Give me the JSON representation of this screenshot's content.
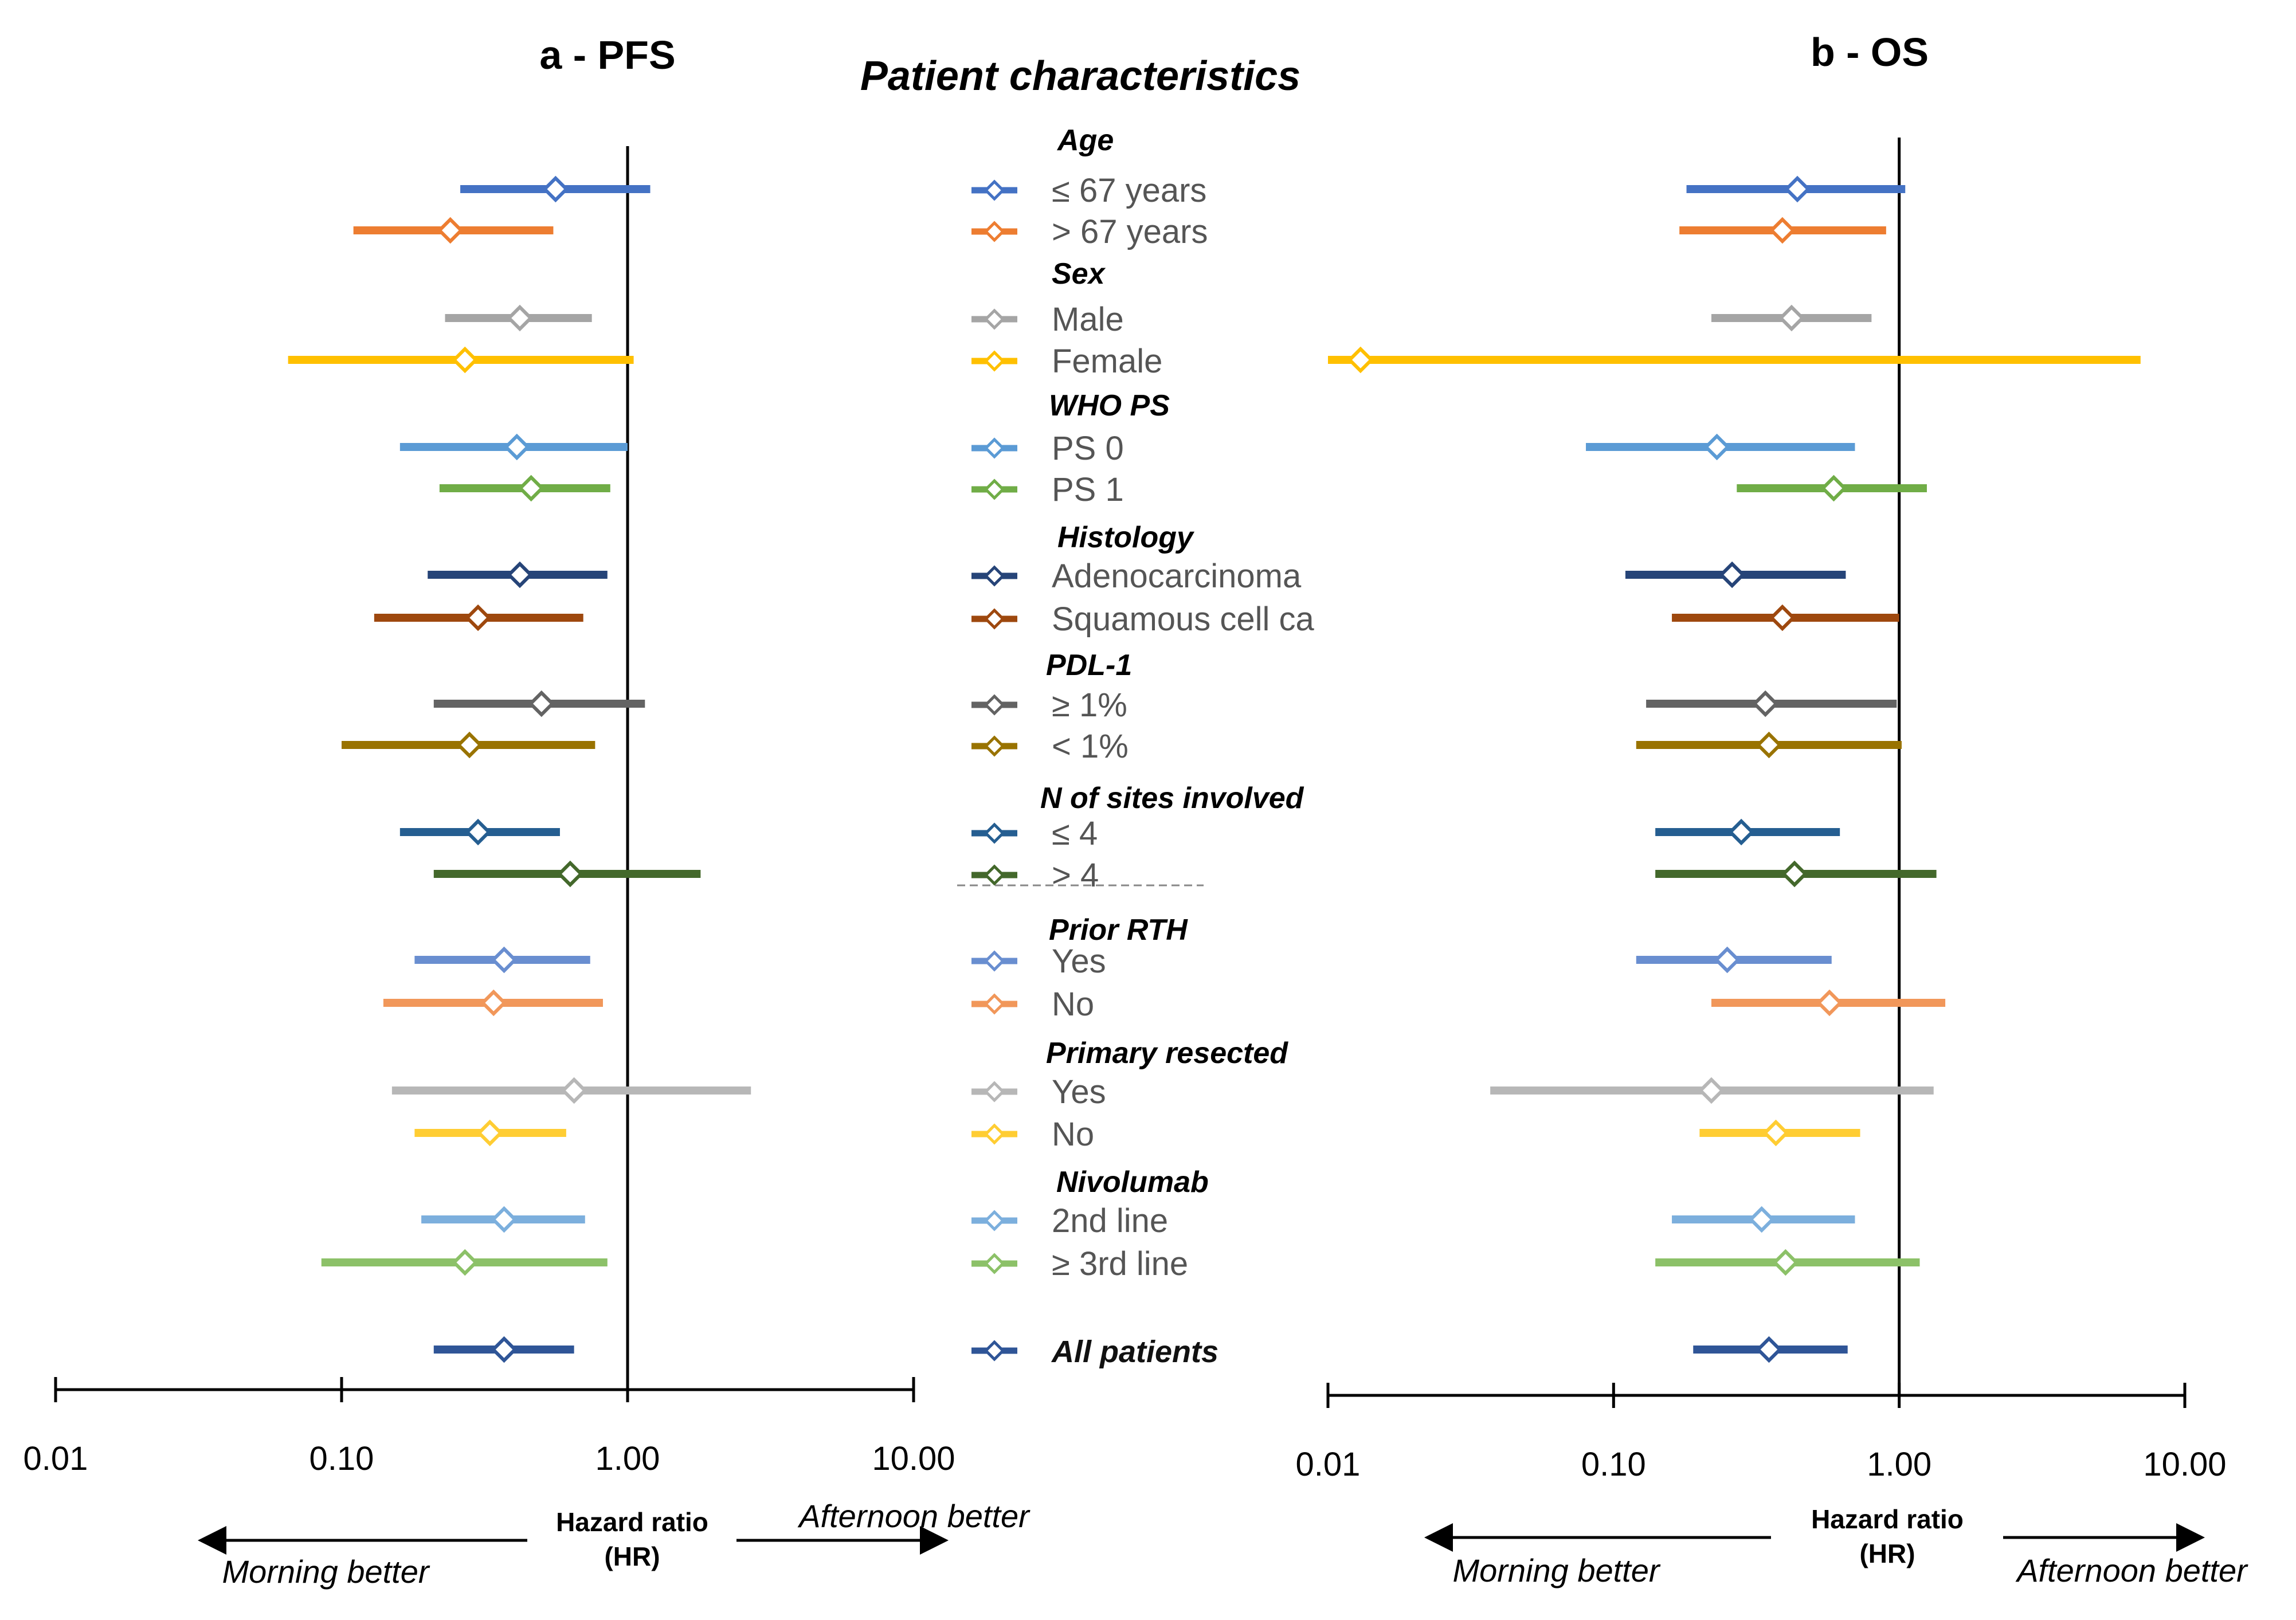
{
  "center_title": "Patient characteristics",
  "axis_label": [
    "Hazard ratio",
    "(HR)"
  ],
  "direction_left": "Morning better",
  "direction_right": "Afternoon  better",
  "direction_right_b": "Afternoon better",
  "tick_labels": [
    "0.01",
    "0.10",
    "1.00",
    "10.00"
  ],
  "groups": [
    {
      "key": "age",
      "label": "Age"
    },
    {
      "key": "sex",
      "label": "Sex"
    },
    {
      "key": "who",
      "label": "WHO PS"
    },
    {
      "key": "hist",
      "label": "Histology"
    },
    {
      "key": "pdl",
      "label": "PDL-1"
    },
    {
      "key": "nsites",
      "label": "N of sites involved"
    },
    {
      "key": "rth",
      "label": "Prior RTH"
    },
    {
      "key": "resected",
      "label": "Primary resected"
    },
    {
      "key": "nivo",
      "label": "Nivolumab"
    }
  ],
  "rows": [
    {
      "group": "age",
      "label": "≤ 67 years",
      "color": "#4472C4"
    },
    {
      "group": "age",
      "label": "> 67 years",
      "color": "#ED7D31"
    },
    {
      "group": "sex",
      "label": "Male",
      "color": "#A5A5A5"
    },
    {
      "group": "sex",
      "label": "Female",
      "color": "#FFC000"
    },
    {
      "group": "who",
      "label": "PS 0",
      "color": "#5B9BD5"
    },
    {
      "group": "who",
      "label": "PS 1",
      "color": "#70AD47"
    },
    {
      "group": "hist",
      "label": "Adenocarcinoma",
      "color": "#264478"
    },
    {
      "group": "hist",
      "label": "Squamous cell ca",
      "color": "#9E480E"
    },
    {
      "group": "pdl",
      "label": "≥ 1%",
      "color": "#636363"
    },
    {
      "group": "pdl",
      "label": "< 1%",
      "color": "#997300"
    },
    {
      "group": "nsites",
      "label": "≤ 4",
      "color": "#255E91"
    },
    {
      "group": "nsites",
      "label": "> 4",
      "color": "#43682B"
    },
    {
      "group": "rth",
      "label": "Yes",
      "color": "#698ED0"
    },
    {
      "group": "rth",
      "label": "No",
      "color": "#F1975A"
    },
    {
      "group": "resected",
      "label": "Yes",
      "color": "#B7B7B7"
    },
    {
      "group": "resected",
      "label": "No",
      "color": "#FFCD33"
    },
    {
      "group": "nivo",
      "label": "2nd line",
      "color": "#7CAFDD"
    },
    {
      "group": "nivo",
      "label": "≥ 3rd line",
      "color": "#8CC168"
    },
    {
      "group": "all",
      "label": "All patients",
      "color": "#2F5597"
    }
  ],
  "chart_data": [
    {
      "type": "forest",
      "title": "a - PFS",
      "xlabel": "Hazard ratio (HR)",
      "xscale": "log",
      "xlim": [
        0.01,
        10
      ],
      "reference_line": 1,
      "hr": [
        0.56,
        0.24,
        0.42,
        0.27,
        0.41,
        0.46,
        0.42,
        0.3,
        0.5,
        0.28,
        0.3,
        0.63,
        0.37,
        0.34,
        0.65,
        0.33,
        0.37,
        0.27,
        0.37
      ],
      "lower": [
        0.26,
        0.11,
        0.23,
        0.065,
        0.16,
        0.22,
        0.2,
        0.13,
        0.21,
        0.1,
        0.16,
        0.21,
        0.18,
        0.14,
        0.15,
        0.18,
        0.19,
        0.085,
        0.21
      ],
      "upper": [
        1.2,
        0.55,
        0.75,
        1.05,
        1.0,
        0.87,
        0.85,
        0.7,
        1.15,
        0.77,
        0.58,
        1.8,
        0.74,
        0.82,
        2.7,
        0.61,
        0.71,
        0.85,
        0.65
      ]
    },
    {
      "type": "forest",
      "title": "b - OS",
      "xlabel": "Hazard ratio (HR)",
      "xscale": "log",
      "xlim": [
        0.01,
        10
      ],
      "reference_line": 1,
      "hr": [
        0.44,
        0.39,
        0.42,
        0.013,
        0.23,
        0.59,
        0.26,
        0.39,
        0.34,
        0.35,
        0.28,
        0.43,
        0.25,
        0.57,
        0.22,
        0.37,
        0.33,
        0.4,
        0.35
      ],
      "lower": [
        0.18,
        0.17,
        0.22,
        0.01,
        0.08,
        0.27,
        0.11,
        0.16,
        0.13,
        0.12,
        0.14,
        0.14,
        0.12,
        0.22,
        0.037,
        0.2,
        0.16,
        0.14,
        0.19
      ],
      "upper": [
        1.05,
        0.9,
        0.8,
        7.0,
        0.7,
        1.25,
        0.65,
        1.0,
        0.98,
        1.02,
        0.62,
        1.35,
        0.58,
        1.45,
        1.32,
        0.73,
        0.7,
        1.18,
        0.66
      ]
    }
  ]
}
